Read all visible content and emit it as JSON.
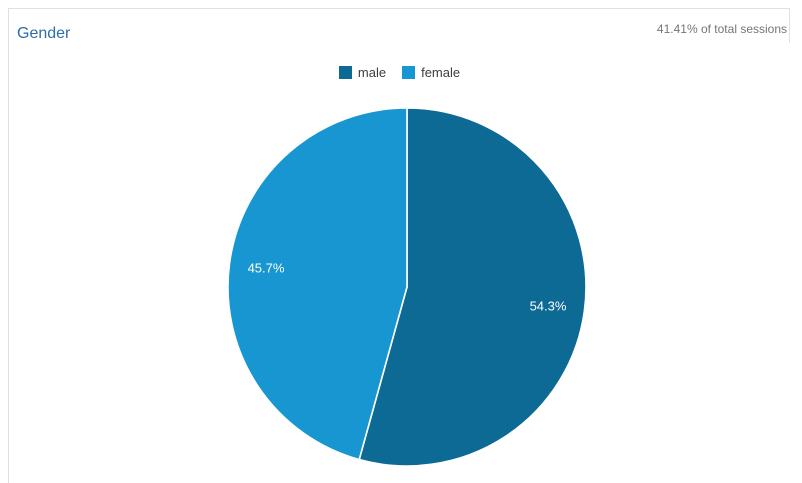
{
  "panel": {
    "title": "Gender",
    "subtitle": "41.41% of total sessions"
  },
  "legend": {
    "items": [
      {
        "label": "male",
        "color": "#0c6a94"
      },
      {
        "label": "female",
        "color": "#1796d2"
      }
    ]
  },
  "chart_data": {
    "type": "pie",
    "title": "Gender",
    "labels": [
      "male",
      "female"
    ],
    "values": [
      54.3,
      45.7
    ],
    "value_labels": [
      "54.3%",
      "45.7%"
    ],
    "colors": [
      "#0c6a94",
      "#1796d2"
    ],
    "slice_label_color": "#ffffff",
    "start_angle_deg": 0,
    "direction": "clockwise",
    "legend_position": "top",
    "note": "41.41% of total sessions"
  },
  "colors": {
    "title": "#2d6da8",
    "subtitle": "#757575",
    "legend_text": "#3d3d3d",
    "panel_border": "#e0e0e0",
    "background": "#ffffff",
    "slice_divider": "#ffffff"
  }
}
